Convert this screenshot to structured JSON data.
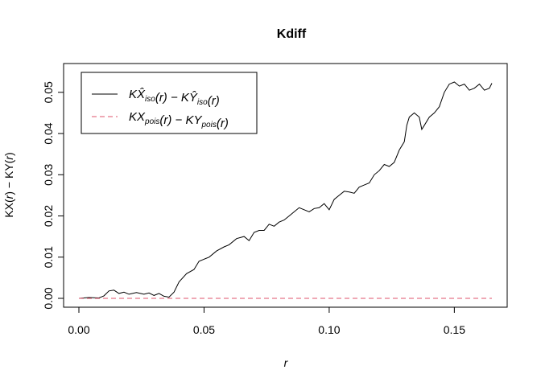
{
  "chart_data": {
    "type": "line",
    "title": "Kdiff",
    "xlabel": "r",
    "ylabel": {
      "lead": "KX(",
      "var1": "r",
      "mid": ") − KY(",
      "var2": "r",
      "tail": ")"
    },
    "xlim": [
      0.0,
      0.165
    ],
    "ylim": [
      0.0,
      0.0525
    ],
    "x_ticks": [
      0.0,
      0.05,
      0.1,
      0.15
    ],
    "x_tick_labels": [
      "0.00",
      "0.05",
      "0.10",
      "0.15"
    ],
    "y_ticks": [
      0.0,
      0.01,
      0.02,
      0.03,
      0.04,
      0.05
    ],
    "y_tick_labels": [
      "0.00",
      "0.01",
      "0.02",
      "0.03",
      "0.04",
      "0.05"
    ],
    "grid": false,
    "legend_position": "top-left",
    "legend": [
      {
        "line_color": "#000000",
        "dash": "solid",
        "parts": [
          {
            "t": "KX̂",
            "sub": "iso"
          },
          {
            "t": "(r) − KŶ",
            "sub": "iso"
          },
          {
            "t": "(r)"
          }
        ]
      },
      {
        "line_color": "#DF536B",
        "dash": "dashed",
        "parts": [
          {
            "t": "KX",
            "sub": "pois"
          },
          {
            "t": "(r) − KY",
            "sub": "pois"
          },
          {
            "t": "(r)"
          }
        ]
      }
    ],
    "series": [
      {
        "color": "#000000",
        "dash": "solid",
        "x": [
          0.0,
          0.004,
          0.008,
          0.01,
          0.012,
          0.014,
          0.016,
          0.018,
          0.02,
          0.023,
          0.026,
          0.028,
          0.03,
          0.032,
          0.034,
          0.036,
          0.038,
          0.04,
          0.043,
          0.046,
          0.048,
          0.05,
          0.052,
          0.055,
          0.058,
          0.06,
          0.063,
          0.066,
          0.068,
          0.07,
          0.072,
          0.074,
          0.076,
          0.078,
          0.08,
          0.082,
          0.084,
          0.086,
          0.088,
          0.09,
          0.092,
          0.094,
          0.096,
          0.098,
          0.1,
          0.102,
          0.104,
          0.106,
          0.108,
          0.11,
          0.112,
          0.114,
          0.116,
          0.118,
          0.12,
          0.122,
          0.124,
          0.126,
          0.128,
          0.13,
          0.131,
          0.132,
          0.134,
          0.136,
          0.137,
          0.138,
          0.14,
          0.142,
          0.144,
          0.146,
          0.148,
          0.15,
          0.152,
          0.154,
          0.156,
          0.158,
          0.16,
          0.162,
          0.164,
          0.165
        ],
        "y": [
          0.0,
          0.0002,
          0.0001,
          0.0006,
          0.0018,
          0.002,
          0.0012,
          0.0015,
          0.001,
          0.0014,
          0.001,
          0.0013,
          0.0007,
          0.0012,
          0.0005,
          0.0003,
          0.0015,
          0.004,
          0.006,
          0.007,
          0.009,
          0.0095,
          0.01,
          0.0115,
          0.0125,
          0.013,
          0.0145,
          0.015,
          0.014,
          0.016,
          0.0165,
          0.0165,
          0.018,
          0.0175,
          0.0185,
          0.019,
          0.02,
          0.021,
          0.022,
          0.0215,
          0.021,
          0.0218,
          0.022,
          0.023,
          0.0215,
          0.024,
          0.025,
          0.026,
          0.0258,
          0.0255,
          0.027,
          0.0275,
          0.028,
          0.03,
          0.031,
          0.0325,
          0.032,
          0.033,
          0.036,
          0.038,
          0.042,
          0.044,
          0.045,
          0.044,
          0.041,
          0.042,
          0.044,
          0.045,
          0.0465,
          0.05,
          0.052,
          0.0525,
          0.0515,
          0.052,
          0.0505,
          0.051,
          0.052,
          0.0505,
          0.051,
          0.0522
        ]
      },
      {
        "color": "#DF536B",
        "dash": "dashed",
        "x": [
          0.0,
          0.165
        ],
        "y": [
          0.0,
          0.0
        ]
      }
    ]
  }
}
